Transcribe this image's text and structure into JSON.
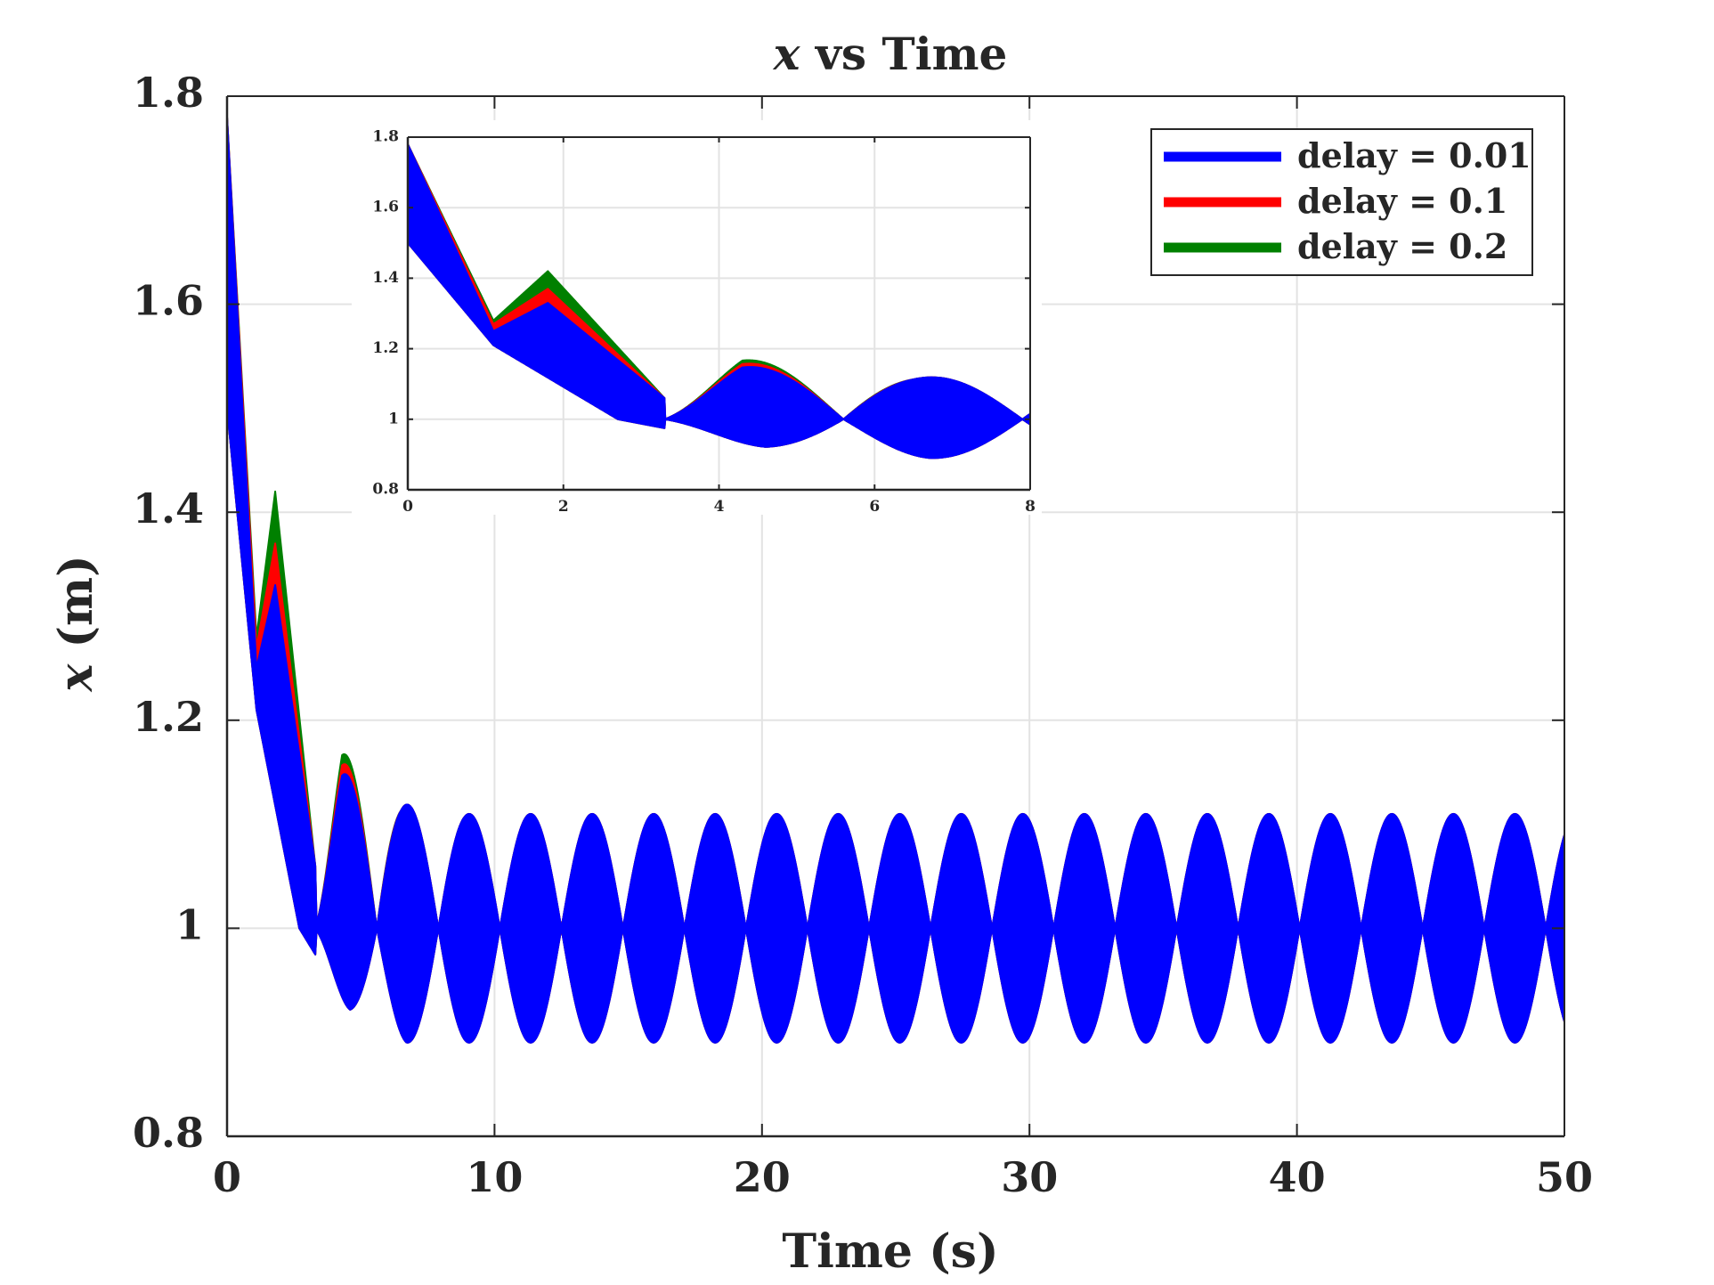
{
  "chart_data": {
    "type": "line",
    "title": "x vs Time",
    "title_var": "x",
    "title_rest": " vs Time",
    "xlabel": "Time (s)",
    "ylabel": "x (m)",
    "ylabel_var": "x",
    "ylabel_rest": " (m)",
    "xlim": [
      0,
      50
    ],
    "ylim": [
      0.8,
      1.8
    ],
    "xticks": [
      0,
      10,
      20,
      30,
      40,
      50
    ],
    "xtick_labels": [
      "0",
      "10",
      "20",
      "30",
      "40",
      "50"
    ],
    "yticks": [
      0.8,
      1.0,
      1.2,
      1.4,
      1.6,
      1.8
    ],
    "ytick_labels": [
      "0.8",
      "1",
      "1.2",
      "1.4",
      "1.6",
      "1.8"
    ],
    "grid": true,
    "legend_location": "top-right",
    "series": [
      {
        "name": "delay = 0.01",
        "color": "#0000ff",
        "envelope_upper": [
          [
            0,
            1.78
          ],
          [
            1.1,
            1.25
          ],
          [
            1.8,
            1.33
          ],
          [
            3.3,
            1.06
          ],
          [
            4.3,
            1.15
          ],
          [
            6.5,
            1.12
          ],
          [
            8.9,
            1.11
          ],
          [
            50,
            1.11
          ]
        ],
        "envelope_lower": [
          [
            0,
            1.5
          ],
          [
            1.1,
            1.21
          ],
          [
            2.7,
            1.0
          ],
          [
            4.6,
            0.92
          ],
          [
            6.7,
            0.89
          ],
          [
            9,
            0.89
          ],
          [
            50,
            0.89
          ]
        ]
      },
      {
        "name": "delay = 0.1",
        "color": "#ff0000",
        "envelope_upper": [
          [
            0,
            1.78
          ],
          [
            1.1,
            1.27
          ],
          [
            1.8,
            1.37
          ],
          [
            3.3,
            1.06
          ],
          [
            4.3,
            1.16
          ],
          [
            6.5,
            1.12
          ],
          [
            8.9,
            1.11
          ],
          [
            50,
            1.11
          ]
        ],
        "envelope_lower": [
          [
            0,
            1.5
          ],
          [
            1.1,
            1.21
          ],
          [
            2.7,
            1.0
          ],
          [
            4.6,
            0.92
          ],
          [
            6.7,
            0.89
          ],
          [
            9,
            0.89
          ],
          [
            50,
            0.89
          ]
        ]
      },
      {
        "name": "delay = 0.2",
        "color": "#008000",
        "envelope_upper": [
          [
            0,
            1.78
          ],
          [
            1.1,
            1.28
          ],
          [
            1.8,
            1.42
          ],
          [
            3.3,
            1.06
          ],
          [
            4.3,
            1.17
          ],
          [
            6.5,
            1.12
          ],
          [
            8.9,
            1.11
          ],
          [
            50,
            1.11
          ]
        ],
        "envelope_lower": [
          [
            0,
            1.5
          ],
          [
            1.1,
            1.21
          ],
          [
            2.7,
            1.0
          ],
          [
            4.6,
            0.92
          ],
          [
            6.7,
            0.89
          ],
          [
            9,
            0.89
          ],
          [
            50,
            0.89
          ]
        ]
      }
    ],
    "beat_period": 2.3,
    "oscillation_center": 1.0,
    "oscillation_amplitude": 0.11,
    "inset": {
      "xlim": [
        0,
        8
      ],
      "ylim": [
        0.8,
        1.8
      ],
      "xticks": [
        0,
        2,
        4,
        6,
        8
      ],
      "xtick_labels": [
        "0",
        "2",
        "4",
        "6",
        "8"
      ],
      "yticks": [
        0.8,
        1.0,
        1.2,
        1.4,
        1.6,
        1.8
      ],
      "ytick_labels": [
        "0.8",
        "1",
        "1.2",
        "1.4",
        "1.6",
        "1.8"
      ],
      "grid": true
    }
  }
}
